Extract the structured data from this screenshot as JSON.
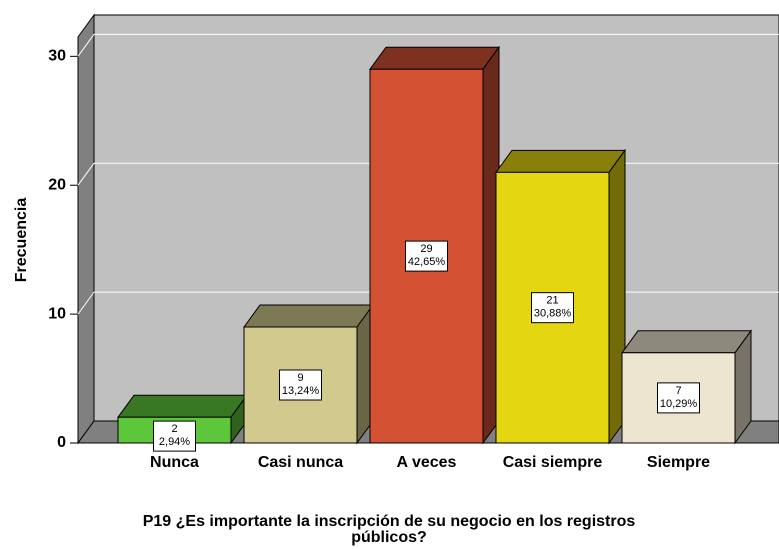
{
  "chart_data": {
    "type": "bar3d",
    "ylabel": "Frecuencia",
    "xlabel": [
      "P19 ¿Es importante la inscripción de su negocio en los registros",
      "públicos?"
    ],
    "categories": [
      "Nunca",
      "Casi nunca",
      "A veces",
      "Casi siempre",
      "Siempre"
    ],
    "values": [
      2,
      9,
      29,
      21,
      7
    ],
    "percents": [
      2.94,
      13.24,
      42.65,
      30.88,
      10.29
    ],
    "percent_labels": [
      "2,94%",
      "13,24%",
      "42,65%",
      "30,88%",
      "10,29%"
    ],
    "colors": [
      "#5dc63a",
      "#d1c98e",
      "#d35233",
      "#e5d612",
      "#ede5d0"
    ],
    "ylim": [
      0,
      31.5
    ],
    "yticks": [
      0,
      10,
      20,
      30
    ],
    "grid": true
  }
}
